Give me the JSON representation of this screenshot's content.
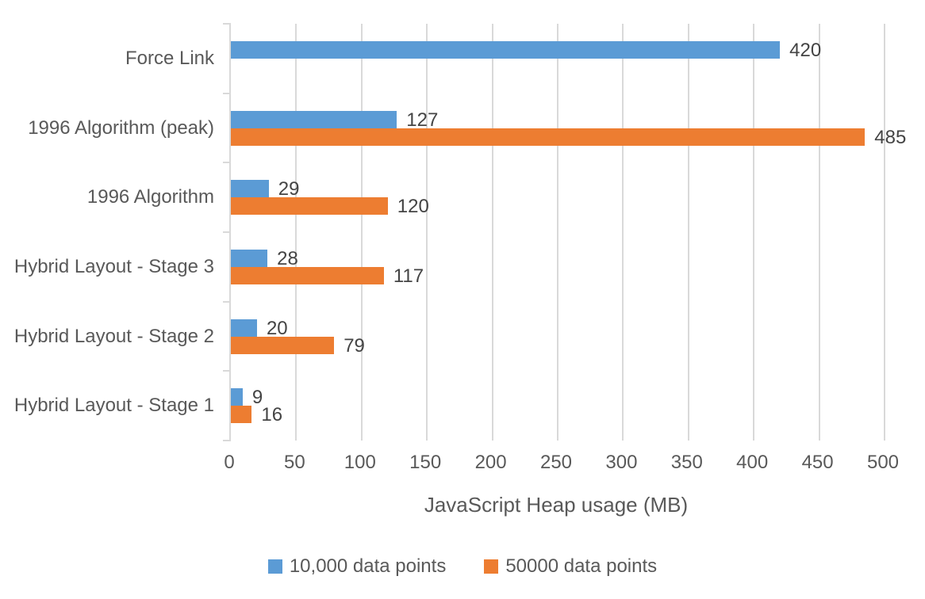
{
  "chart_data": {
    "type": "bar",
    "orientation": "horizontal",
    "title": "",
    "xlabel": "JavaScript Heap usage (MB)",
    "ylabel": "",
    "categories": [
      "Force Link",
      "1996 Algorithm (peak)",
      "1996 Algorithm",
      "Hybrid Layout - Stage 3",
      "Hybrid Layout - Stage 2",
      "Hybrid Layout - Stage 1"
    ],
    "series": [
      {
        "name": "10,000 data points",
        "color": "#5B9BD5",
        "values": [
          420,
          127,
          29,
          28,
          20,
          9
        ]
      },
      {
        "name": "50000 data points",
        "color": "#ED7D31",
        "values": [
          null,
          485,
          120,
          117,
          79,
          16
        ]
      }
    ],
    "xlim": [
      0,
      500
    ],
    "xtick_step": 50,
    "grid": true,
    "data_labels": true,
    "legend_position": "bottom",
    "colors": {
      "gridline": "#D9D9D9",
      "axis_text": "#595959",
      "data_label_text": "#444444"
    }
  }
}
